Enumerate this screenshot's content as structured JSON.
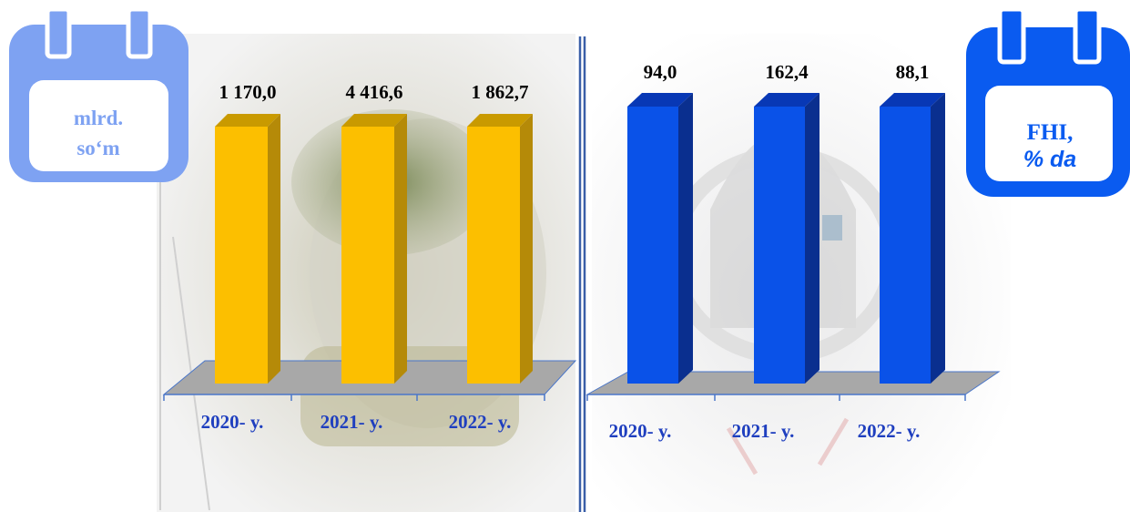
{
  "colors": {
    "left_bar_front": "#FCBF00",
    "left_bar_side": "#B58A08",
    "left_bar_top": "#C99A00",
    "right_bar_front": "#0A52E8",
    "right_bar_side": "#0A2F8F",
    "right_bar_top": "#0838B5",
    "floor": "#A8A8A8",
    "floor_edge": "#4A76C9",
    "tick_text": "#1F3FBF",
    "divider": "#3A5FA8",
    "left_badge": "#7EA2F2",
    "left_badge_text": "#7EA2F2",
    "right_badge": "#0A5BF0",
    "right_badge_text": "#0A5BF0"
  },
  "icons": {
    "left_badge": "calendar-icon",
    "right_badge": "calendar-icon"
  },
  "left_badge": {
    "line1": "mlrd.",
    "line2": "so‘m"
  },
  "right_badge": {
    "line1": "FHI,",
    "line2": "% da"
  },
  "chart_data": [
    {
      "type": "bar",
      "categories": [
        "2020- y.",
        "2021- y.",
        "2022- y."
      ],
      "values": [
        1170.0,
        4416.6,
        1862.7
      ],
      "value_labels": [
        "1 170,0",
        "4 416,6",
        "1 862,7"
      ],
      "unit": "mlrd. so‘m",
      "bar_heights_equal": true,
      "style": "3d",
      "legend": "none",
      "grid": false
    },
    {
      "type": "bar",
      "categories": [
        "2020- y.",
        "2021- y.",
        "2022- y."
      ],
      "values": [
        94.0,
        162.4,
        88.1
      ],
      "value_labels": [
        "94,0",
        "162,4",
        "88,1"
      ],
      "unit": "FHI, % da",
      "bar_heights_equal": true,
      "style": "3d",
      "legend": "none",
      "grid": false
    }
  ]
}
